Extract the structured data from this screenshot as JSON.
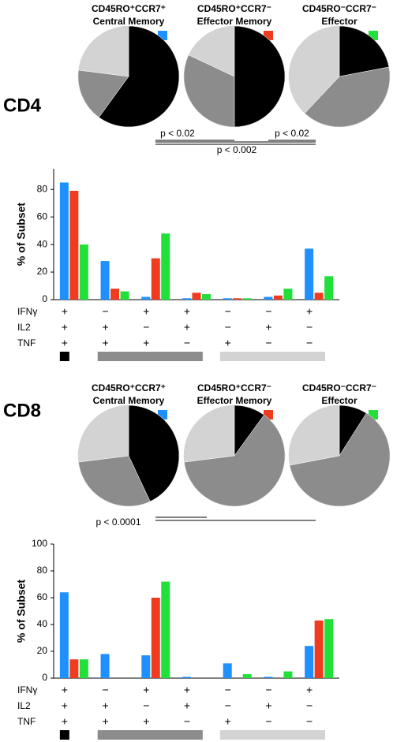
{
  "panels": [
    {
      "label": "CD4",
      "annotations": [
        "p < 0.02",
        "p < 0.02",
        "p < 0.002"
      ]
    },
    {
      "label": "CD8",
      "annotations": [
        "p < 0.0001"
      ]
    }
  ],
  "chart_data": [
    {
      "type": "pie",
      "title": "CD45RO⁺CCR7⁺",
      "subtitle": "Central Memory",
      "color": "#1e90ff",
      "values": [
        60,
        17,
        23
      ],
      "colors": [
        "#000000",
        "#8c8c8c",
        "#d3d3d3"
      ]
    },
    {
      "type": "pie",
      "title": "CD45RO⁺CCR7⁻",
      "subtitle": "Effector Memory",
      "color": "#f03c1e",
      "values": [
        50,
        32,
        18
      ],
      "colors": [
        "#000000",
        "#8c8c8c",
        "#d3d3d3"
      ]
    },
    {
      "type": "pie",
      "title": "CD45RO⁻CCR7⁻",
      "subtitle": "Effector",
      "color": "#22e03a",
      "values": [
        22,
        40,
        38
      ],
      "colors": [
        "#000000",
        "#8c8c8c",
        "#d3d3d3"
      ]
    },
    {
      "type": "bar",
      "y_label": "% of Subset",
      "row_labels": [
        "IFNγ",
        "IL2",
        "TNF"
      ],
      "categories": [
        [
          "+",
          "+",
          "+"
        ],
        [
          "−",
          "+",
          "+"
        ],
        [
          "+",
          "−",
          "+"
        ],
        [
          "+",
          "+",
          "−"
        ],
        [
          "−",
          "−",
          "+"
        ],
        [
          "−",
          "+",
          "−"
        ],
        [
          "+",
          "−",
          "−"
        ]
      ],
      "group_colors": [
        "#000000",
        "#8c8c8c",
        "#8c8c8c",
        "#8c8c8c",
        "#d3d3d3",
        "#d3d3d3",
        "#d3d3d3"
      ],
      "ylim": [
        0,
        95
      ],
      "yticks": [
        0,
        20,
        40,
        60,
        80
      ],
      "series": [
        {
          "color": "#1e90ff",
          "values": [
            85,
            28,
            2,
            1,
            1,
            2,
            37
          ]
        },
        {
          "color": "#f03c1e",
          "values": [
            79,
            8,
            30,
            5,
            1,
            3,
            5
          ]
        },
        {
          "color": "#22e03a",
          "values": [
            40,
            6,
            48,
            4,
            1,
            8,
            17
          ]
        }
      ]
    },
    {
      "type": "pie",
      "title": "CD45RO⁺CCR7⁺",
      "subtitle": "Central Memory",
      "color": "#1e90ff",
      "values": [
        43,
        30,
        27
      ],
      "colors": [
        "#000000",
        "#8c8c8c",
        "#d3d3d3"
      ]
    },
    {
      "type": "pie",
      "title": "CD45RO⁺CCR7⁻",
      "subtitle": "Effector Memory",
      "color": "#f03c1e",
      "values": [
        10,
        63,
        27
      ],
      "colors": [
        "#000000",
        "#8c8c8c",
        "#d3d3d3"
      ]
    },
    {
      "type": "pie",
      "title": "CD45RO⁻CCR7⁻",
      "subtitle": "Effector",
      "color": "#22e03a",
      "values": [
        9,
        63,
        28
      ],
      "colors": [
        "#000000",
        "#8c8c8c",
        "#d3d3d3"
      ]
    },
    {
      "type": "bar",
      "y_label": "% of Subset",
      "row_labels": [
        "IFNγ",
        "IL2",
        "TNF"
      ],
      "categories": [
        [
          "+",
          "+",
          "+"
        ],
        [
          "−",
          "+",
          "+"
        ],
        [
          "+",
          "−",
          "+"
        ],
        [
          "+",
          "+",
          "−"
        ],
        [
          "−",
          "−",
          "+"
        ],
        [
          "−",
          "+",
          "−"
        ],
        [
          "+",
          "−",
          "−"
        ]
      ],
      "group_colors": [
        "#000000",
        "#8c8c8c",
        "#8c8c8c",
        "#8c8c8c",
        "#d3d3d3",
        "#d3d3d3",
        "#d3d3d3"
      ],
      "ylim": [
        0,
        100
      ],
      "yticks": [
        0,
        20,
        40,
        60,
        80,
        100
      ],
      "series": [
        {
          "color": "#1e90ff",
          "values": [
            64,
            18,
            17,
            1,
            11,
            1,
            24
          ]
        },
        {
          "color": "#f03c1e",
          "values": [
            14,
            0,
            60,
            0,
            0,
            0,
            43
          ]
        },
        {
          "color": "#22e03a",
          "values": [
            14,
            0,
            72,
            0,
            3,
            5,
            44
          ]
        }
      ]
    }
  ]
}
